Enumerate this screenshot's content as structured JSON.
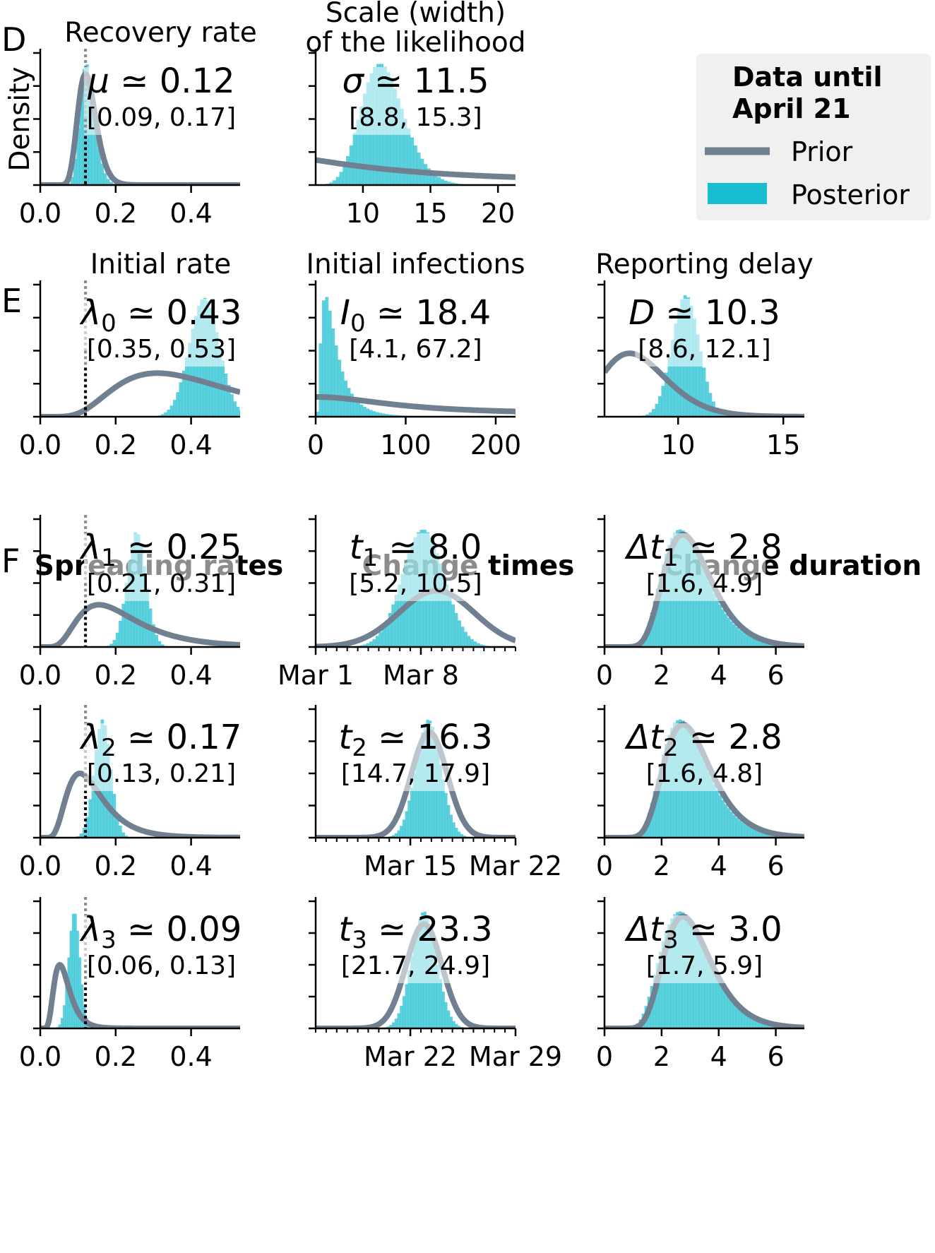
{
  "panel_letters": [
    "D",
    "E",
    "F"
  ],
  "col_headers": {
    "spreading_rates": "Spreading rates",
    "change_times": "Change times",
    "change_duration": "Change duration"
  },
  "legend": {
    "title_line1": "Data until",
    "title_line2": "April 21",
    "prior": "Prior",
    "posterior": "Posterior",
    "prior_color": "#708090",
    "posterior_color": "#17becf",
    "background": "#f0f0f0",
    "placement": "upper-right"
  },
  "chart_data": [
    {
      "id": "recovery",
      "type": "histogram",
      "title": "Recovery rate",
      "ylabel": "Density",
      "estimate_var": "μ",
      "estimate_value": "0.12",
      "ci": "[0.09, 0.17]",
      "xlim": [
        0,
        0.53
      ],
      "xticks": [
        {
          "v": 0,
          "l": "0.0"
        },
        {
          "v": 0.2,
          "l": "0.2"
        },
        {
          "v": 0.4,
          "l": "0.4"
        }
      ],
      "reference_line": 0.12,
      "prior": {
        "dist": "lognormal",
        "mu": -2.08,
        "sigma": 0.2,
        "peak_frac": 0.84
      },
      "posterior": {
        "dist": "lognormal",
        "mu": -2.08,
        "sigma": 0.16,
        "peak_frac": 0.92,
        "bin": 0.008
      }
    },
    {
      "id": "scale",
      "type": "histogram",
      "title_line1": "Scale (width)",
      "title_line2": "of the likelihood",
      "estimate_var": "σ",
      "estimate_value": "11.5",
      "ci": "[8.8, 15.3]",
      "xlim": [
        6.5,
        21.3
      ],
      "xticks": [
        {
          "v": 10,
          "l": "10"
        },
        {
          "v": 15,
          "l": "15"
        },
        {
          "v": 20,
          "l": "20"
        }
      ],
      "prior": {
        "dist": "halfcauchy",
        "scale": 10,
        "left_frac": 0.19,
        "right_frac": 0.06
      },
      "posterior": {
        "dist": "lognormal",
        "mu": 2.44,
        "sigma": 0.14,
        "peak_frac": 0.92,
        "bin": 0.25
      }
    },
    {
      "id": "initial_rate",
      "type": "histogram",
      "title": "Initial rate",
      "estimate_var": "λ",
      "estimate_sub": "0",
      "estimate_value": "0.43",
      "ci": "[0.35, 0.53]",
      "xlim": [
        0,
        0.53
      ],
      "xticks": [
        {
          "v": 0,
          "l": "0.0"
        },
        {
          "v": 0.2,
          "l": "0.2"
        },
        {
          "v": 0.4,
          "l": "0.4"
        }
      ],
      "reference_line": 0.12,
      "prior": {
        "dist": "lognormal",
        "mu": -0.92,
        "sigma": 0.5,
        "peak_frac": 0.33
      },
      "posterior": {
        "dist": "normal",
        "mean": 0.435,
        "sd": 0.04,
        "peak_frac": 0.9,
        "bin": 0.008
      }
    },
    {
      "id": "initial_infections",
      "type": "histogram",
      "title": "Initial infections",
      "estimate_var": "I",
      "estimate_sub": "0",
      "estimate_value": "18.4",
      "ci": "[4.1, 67.2]",
      "xlim": [
        0,
        222
      ],
      "xticks": [
        {
          "v": 0,
          "l": "0"
        },
        {
          "v": 100,
          "l": "100"
        },
        {
          "v": 200,
          "l": "200"
        }
      ],
      "prior": {
        "dist": "halfcauchy",
        "scale": 100,
        "left_frac": 0.15,
        "right_frac": 0.04
      },
      "posterior": {
        "dist": "lognormal",
        "mu": 2.9,
        "sigma": 0.72,
        "peak_frac": 0.92,
        "bin": 3.5
      }
    },
    {
      "id": "reporting_delay",
      "type": "histogram",
      "title": "Reporting delay",
      "estimate_var": "D",
      "estimate_value": "10.3",
      "ci": "[8.6, 12.1]",
      "xlim": [
        6.5,
        16
      ],
      "xticks": [
        {
          "v": 10,
          "l": "10"
        },
        {
          "v": 15,
          "l": "15"
        }
      ],
      "prior": {
        "dist": "lognormal",
        "mu": 2.08,
        "sigma": 0.2,
        "peak_frac": 0.48
      },
      "posterior": {
        "dist": "normal",
        "mean": 10.35,
        "sd": 0.65,
        "peak_frac": 0.92,
        "bin": 0.15
      }
    },
    {
      "id": "lambda1",
      "type": "histogram",
      "estimate_var": "λ",
      "estimate_sub": "1",
      "estimate_value": "0.25",
      "ci": "[0.21, 0.31]",
      "xlim": [
        0,
        0.53
      ],
      "xticks": [
        {
          "v": 0,
          "l": "0.0"
        },
        {
          "v": 0.2,
          "l": "0.2"
        },
        {
          "v": 0.4,
          "l": "0.4"
        }
      ],
      "reference_line": 0.12,
      "prior": {
        "dist": "lognormal",
        "mu": -1.61,
        "sigma": 0.5,
        "peak_frac": 0.33
      },
      "posterior": {
        "dist": "normal",
        "mean": 0.255,
        "sd": 0.025,
        "peak_frac": 0.9,
        "bin": 0.008
      }
    },
    {
      "id": "t1",
      "type": "histogram",
      "estimate_var": "t",
      "estimate_sub": "1",
      "estimate_value": "8.0",
      "ci": "[5.2, 10.5]",
      "xlim": [
        0,
        19
      ],
      "xticks": [
        {
          "v": 0,
          "l": "Mar 1"
        },
        {
          "v": 10,
          "l": "Mar 8"
        }
      ],
      "minor_step": 1,
      "prior": {
        "dist": "normal",
        "mean": 11.5,
        "sd": 3.6,
        "peak_frac": 0.44
      },
      "posterior": {
        "dist": "normal",
        "mean": 10.2,
        "sd": 2.0,
        "peak_frac": 0.92,
        "bin": 0.3
      }
    },
    {
      "id": "dt1",
      "type": "histogram",
      "estimate_var": "Δt",
      "estimate_sub": "1",
      "estimate_value": "2.8",
      "ci": "[1.6, 4.9]",
      "xlim": [
        0,
        7
      ],
      "xticks": [
        {
          "v": 0,
          "l": "0"
        },
        {
          "v": 2,
          "l": "2"
        },
        {
          "v": 4,
          "l": "4"
        },
        {
          "v": 6,
          "l": "6"
        }
      ],
      "prior": {
        "dist": "lognormal",
        "mu": 1.1,
        "sigma": 0.3,
        "peak_frac": 0.88
      },
      "posterior": {
        "dist": "lognormal",
        "mu": 1.06,
        "sigma": 0.3,
        "peak_frac": 0.92,
        "bin": 0.1
      }
    },
    {
      "id": "lambda2",
      "type": "histogram",
      "estimate_var": "λ",
      "estimate_sub": "2",
      "estimate_value": "0.17",
      "ci": "[0.13, 0.21]",
      "xlim": [
        0,
        0.53
      ],
      "xticks": [
        {
          "v": 0,
          "l": "0.0"
        },
        {
          "v": 0.2,
          "l": "0.2"
        },
        {
          "v": 0.4,
          "l": "0.4"
        }
      ],
      "reference_line": 0.12,
      "prior": {
        "dist": "lognormal",
        "mu": -2.05,
        "sigma": 0.45,
        "peak_frac": 0.5
      },
      "posterior": {
        "dist": "normal",
        "mean": 0.165,
        "sd": 0.022,
        "peak_frac": 0.92,
        "bin": 0.008
      }
    },
    {
      "id": "t2",
      "type": "histogram",
      "estimate_var": "t",
      "estimate_sub": "2",
      "estimate_value": "16.3",
      "ci": "[14.7, 17.9]",
      "xlim": [
        0,
        19
      ],
      "xticks": [
        {
          "v": 9,
          "l": "Mar 15"
        },
        {
          "v": 19,
          "l": "Mar 22"
        }
      ],
      "minor_step": 1,
      "prior": {
        "dist": "normal",
        "mean": 10.8,
        "sd": 1.7,
        "peak_frac": 0.82
      },
      "posterior": {
        "dist": "normal",
        "mean": 10.7,
        "sd": 1.2,
        "peak_frac": 0.92,
        "bin": 0.25
      }
    },
    {
      "id": "dt2",
      "type": "histogram",
      "estimate_var": "Δt",
      "estimate_sub": "2",
      "estimate_value": "2.8",
      "ci": "[1.6, 4.8]",
      "xlim": [
        0,
        7
      ],
      "xticks": [
        {
          "v": 0,
          "l": "0"
        },
        {
          "v": 2,
          "l": "2"
        },
        {
          "v": 4,
          "l": "4"
        },
        {
          "v": 6,
          "l": "6"
        }
      ],
      "prior": {
        "dist": "lognormal",
        "mu": 1.1,
        "sigma": 0.3,
        "peak_frac": 0.88
      },
      "posterior": {
        "dist": "lognormal",
        "mu": 1.06,
        "sigma": 0.3,
        "peak_frac": 0.92,
        "bin": 0.1
      }
    },
    {
      "id": "lambda3",
      "type": "histogram",
      "estimate_var": "λ",
      "estimate_sub": "3",
      "estimate_value": "0.09",
      "ci": "[0.06, 0.13]",
      "xlim": [
        0,
        0.53
      ],
      "xticks": [
        {
          "v": 0,
          "l": "0.0"
        },
        {
          "v": 0.2,
          "l": "0.2"
        },
        {
          "v": 0.4,
          "l": "0.4"
        }
      ],
      "reference_line": 0.12,
      "prior": {
        "dist": "lognormal",
        "mu": -2.8,
        "sigma": 0.4,
        "peak_frac": 0.5
      },
      "posterior": {
        "dist": "normal",
        "mean": 0.09,
        "sd": 0.015,
        "peak_frac": 0.92,
        "bin": 0.006
      }
    },
    {
      "id": "t3",
      "type": "histogram",
      "estimate_var": "t",
      "estimate_sub": "3",
      "estimate_value": "23.3",
      "ci": "[21.7, 24.9]",
      "xlim": [
        0,
        19
      ],
      "xticks": [
        {
          "v": 9,
          "l": "Mar 22"
        },
        {
          "v": 19,
          "l": "Mar 29"
        }
      ],
      "minor_step": 1,
      "prior": {
        "dist": "normal",
        "mean": 10.3,
        "sd": 1.7,
        "peak_frac": 0.82
      },
      "posterior": {
        "dist": "normal",
        "mean": 10.3,
        "sd": 1.2,
        "peak_frac": 0.92,
        "bin": 0.25
      }
    },
    {
      "id": "dt3",
      "type": "histogram",
      "estimate_var": "Δt",
      "estimate_sub": "3",
      "estimate_value": "3.0",
      "ci": "[1.7, 5.9]",
      "xlim": [
        0,
        7
      ],
      "xticks": [
        {
          "v": 0,
          "l": "0"
        },
        {
          "v": 2,
          "l": "2"
        },
        {
          "v": 4,
          "l": "4"
        },
        {
          "v": 6,
          "l": "6"
        }
      ],
      "prior": {
        "dist": "lognormal",
        "mu": 1.1,
        "sigma": 0.3,
        "peak_frac": 0.88
      },
      "posterior": {
        "dist": "lognormal",
        "mu": 1.08,
        "sigma": 0.33,
        "peak_frac": 0.92,
        "bin": 0.1
      }
    }
  ]
}
